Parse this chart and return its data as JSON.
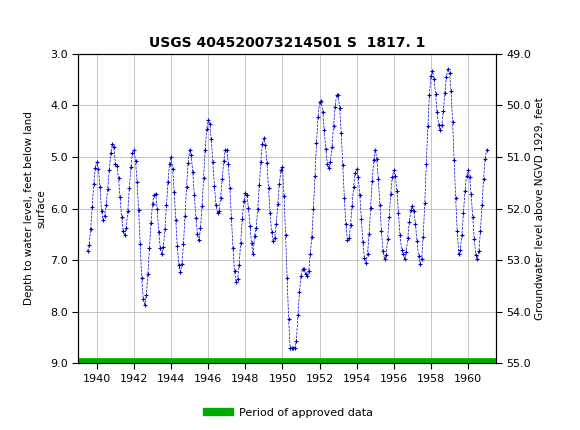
{
  "title": "USGS 404520073214501 S  1817. 1",
  "ylabel_left": "Depth to water level, feet below land\nsurface",
  "ylabel_right": "Groundwater level above NGVD 1929, feet",
  "ylim_left": [
    3.0,
    9.0
  ],
  "yticks_left": [
    3.0,
    4.0,
    5.0,
    6.0,
    7.0,
    8.0,
    9.0
  ],
  "yticks_right": [
    55.0,
    54.0,
    53.0,
    52.0,
    51.0,
    50.0,
    49.0
  ],
  "xlim": [
    1939.0,
    1961.5
  ],
  "xticks": [
    1940,
    1942,
    1944,
    1946,
    1948,
    1950,
    1952,
    1954,
    1956,
    1958,
    1960
  ],
  "header_color": "#006b3c",
  "data_color": "#0000cc",
  "approved_color": "#00aa00",
  "legend_label": "Period of approved data",
  "approved_y_left": 9.0,
  "approved_x_start": 1939.0,
  "approved_x_end": 1961.5,
  "background_color": "#ffffff",
  "grid_color": "#bbbbbb"
}
